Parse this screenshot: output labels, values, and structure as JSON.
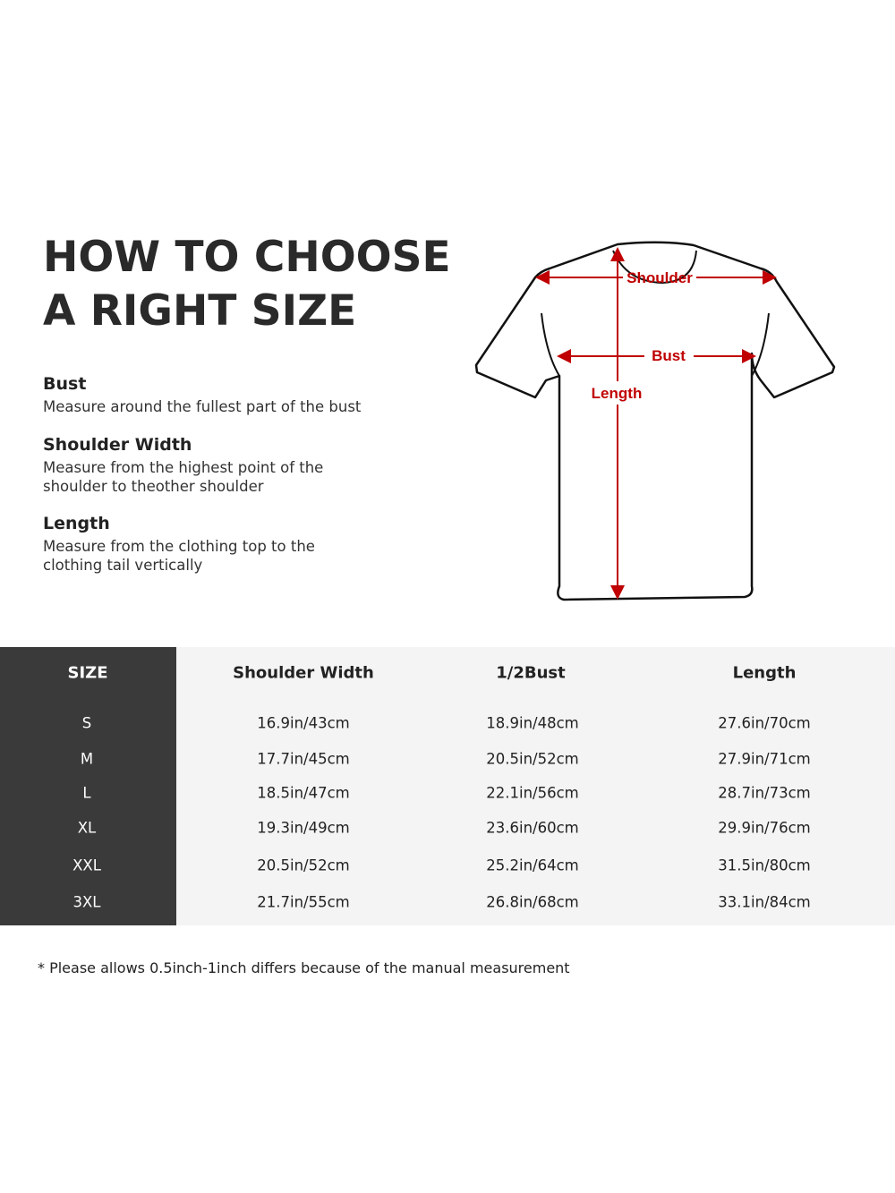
{
  "title": {
    "line1": "HOW TO CHOOSE",
    "line2": "A RIGHT SIZE"
  },
  "guides": [
    {
      "heading": "Bust",
      "text": "Measure around the fullest part of the bust"
    },
    {
      "heading": "Shoulder Width",
      "text_lines": [
        "Measure from the highest point of the",
        "shoulder to theother shoulder"
      ]
    },
    {
      "heading": "Length",
      "text_lines": [
        "Measure from the clothing top to the",
        "clothing tail vertically"
      ]
    }
  ],
  "diagram": {
    "shoulder_label": "Shoulder",
    "bust_label": "Bust",
    "length_label": "Length",
    "accent_color": "#c00000"
  },
  "table": {
    "headers": [
      "SIZE",
      "Shoulder Width",
      "1/2Bust",
      "Length"
    ],
    "rows": [
      [
        "S",
        "16.9in/43cm",
        "18.9in/48cm",
        "27.6in/70cm"
      ],
      [
        "M",
        "17.7in/45cm",
        "20.5in/52cm",
        "27.9in/71cm"
      ],
      [
        "L",
        "18.5in/47cm",
        "22.1in/56cm",
        "28.7in/73cm"
      ],
      [
        "XL",
        "19.3in/49cm",
        "23.6in/60cm",
        "29.9in/76cm"
      ],
      [
        "XXL",
        "20.5in/52cm",
        "25.2in/64cm",
        "31.5in/80cm"
      ],
      [
        "3XL",
        "21.7in/55cm",
        "26.8in/68cm",
        "33.1in/84cm"
      ]
    ]
  },
  "footnote": "* Please allows 0.5inch-1inch differs because of the  manual measurement"
}
